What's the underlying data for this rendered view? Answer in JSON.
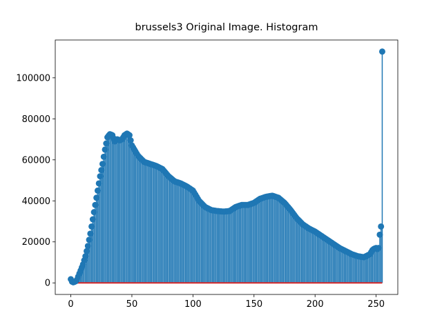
{
  "chart_data": {
    "type": "stem",
    "title": "brussels3 Original Image. Histogram",
    "x": [
      0,
      1,
      2,
      3,
      4,
      5,
      6,
      7,
      8,
      9,
      10,
      11,
      12,
      13,
      14,
      15,
      16,
      17,
      18,
      19,
      20,
      21,
      22,
      23,
      24,
      25,
      26,
      27,
      28,
      29,
      30,
      31,
      32,
      33,
      34,
      35,
      36,
      37,
      38,
      39,
      40,
      41,
      42,
      43,
      44,
      45,
      46,
      47,
      48,
      49,
      50,
      51,
      52,
      53,
      54,
      55,
      56,
      57,
      58,
      59,
      60,
      61,
      62,
      63,
      64,
      65,
      66,
      67,
      68,
      69,
      70,
      71,
      72,
      73,
      74,
      75,
      76,
      77,
      78,
      79,
      80,
      81,
      82,
      83,
      84,
      85,
      86,
      87,
      88,
      89,
      90,
      91,
      92,
      93,
      94,
      95,
      96,
      97,
      98,
      99,
      100,
      101,
      102,
      103,
      104,
      105,
      106,
      107,
      108,
      109,
      110,
      111,
      112,
      113,
      114,
      115,
      116,
      117,
      118,
      119,
      120,
      121,
      122,
      123,
      124,
      125,
      126,
      127,
      128,
      129,
      130,
      131,
      132,
      133,
      134,
      135,
      136,
      137,
      138,
      139,
      140,
      141,
      142,
      143,
      144,
      145,
      146,
      147,
      148,
      149,
      150,
      151,
      152,
      153,
      154,
      155,
      156,
      157,
      158,
      159,
      160,
      161,
      162,
      163,
      164,
      165,
      166,
      167,
      168,
      169,
      170,
      171,
      172,
      173,
      174,
      175,
      176,
      177,
      178,
      179,
      180,
      181,
      182,
      183,
      184,
      185,
      186,
      187,
      188,
      189,
      190,
      191,
      192,
      193,
      194,
      195,
      196,
      197,
      198,
      199,
      200,
      201,
      202,
      203,
      204,
      205,
      206,
      207,
      208,
      209,
      210,
      211,
      212,
      213,
      214,
      215,
      216,
      217,
      218,
      219,
      220,
      221,
      222,
      223,
      224,
      225,
      226,
      227,
      228,
      229,
      230,
      231,
      232,
      233,
      234,
      235,
      236,
      237,
      238,
      239,
      240,
      241,
      242,
      243,
      244,
      245,
      246,
      247,
      248,
      249,
      250,
      251,
      252,
      253,
      254,
      255
    ],
    "values": [
      1800,
      600,
      300,
      500,
      800,
      1500,
      3000,
      4500,
      6000,
      7500,
      9000,
      11000,
      13000,
      15500,
      18000,
      21000,
      24000,
      27500,
      31000,
      34500,
      38000,
      41500,
      45000,
      48500,
      52000,
      55000,
      58000,
      61500,
      65000,
      68000,
      71000,
      71800,
      72500,
      72300,
      72000,
      70500,
      69000,
      69500,
      70000,
      69800,
      69500,
      69800,
      70000,
      71000,
      72000,
      72400,
      72800,
      72400,
      72000,
      69500,
      67000,
      66000,
      65000,
      64000,
      63000,
      62000,
      61400,
      60800,
      60200,
      59600,
      59000,
      58800,
      58600,
      58400,
      58200,
      58000,
      57800,
      57600,
      57400,
      57200,
      57000,
      56700,
      56400,
      56100,
      55800,
      55500,
      54800,
      54100,
      53400,
      52700,
      52000,
      51500,
      51000,
      50500,
      50000,
      49500,
      49300,
      49100,
      48900,
      48700,
      48500,
      48200,
      47900,
      47600,
      47300,
      47000,
      46600,
      46200,
      45800,
      45400,
      45000,
      44000,
      43000,
      42000,
      41000,
      40000,
      39400,
      38800,
      38200,
      37600,
      37000,
      36700,
      36400,
      36100,
      35800,
      35500,
      35400,
      35300,
      35200,
      35100,
      35000,
      35000,
      34900,
      34900,
      34800,
      34800,
      34800,
      34900,
      34900,
      35000,
      35000,
      35400,
      35800,
      36200,
      36600,
      37000,
      37200,
      37400,
      37600,
      37800,
      38000,
      38000,
      38000,
      38000,
      38000,
      38000,
      38200,
      38400,
      38600,
      38800,
      39000,
      39400,
      39800,
      40200,
      40600,
      41000,
      41200,
      41400,
      41600,
      41800,
      42000,
      42100,
      42200,
      42300,
      42400,
      42500,
      42300,
      42100,
      41900,
      41700,
      41500,
      41000,
      40500,
      40000,
      39500,
      39000,
      38300,
      37600,
      36900,
      36200,
      35500,
      34700,
      33900,
      33100,
      32300,
      31500,
      30900,
      30300,
      29700,
      29100,
      28500,
      28100,
      27700,
      27300,
      26900,
      26500,
      26200,
      25900,
      25600,
      25300,
      25000,
      24600,
      24200,
      23800,
      23400,
      23000,
      22600,
      22200,
      21800,
      21400,
      21000,
      20600,
      20200,
      19800,
      19400,
      19000,
      18600,
      18200,
      17800,
      17400,
      17000,
      16700,
      16400,
      16100,
      15800,
      15500,
      15200,
      14900,
      14600,
      14300,
      14000,
      13800,
      13600,
      13400,
      13200,
      13000,
      12900,
      12800,
      12700,
      12600,
      12500,
      12800,
      13100,
      13400,
      13700,
      14000,
      15000,
      16000,
      16500,
      16800,
      17000,
      16500,
      17000,
      23500,
      27500,
      112800
    ],
    "color": "#1f77b4",
    "baseline_color": "#d62728",
    "xlim": [
      -12.75,
      267.75
    ],
    "xticks": [
      0,
      50,
      100,
      150,
      200,
      250
    ],
    "ylim": [
      -5640,
      118440
    ],
    "yticks": [
      0,
      20000,
      40000,
      60000,
      80000,
      100000
    ]
  }
}
